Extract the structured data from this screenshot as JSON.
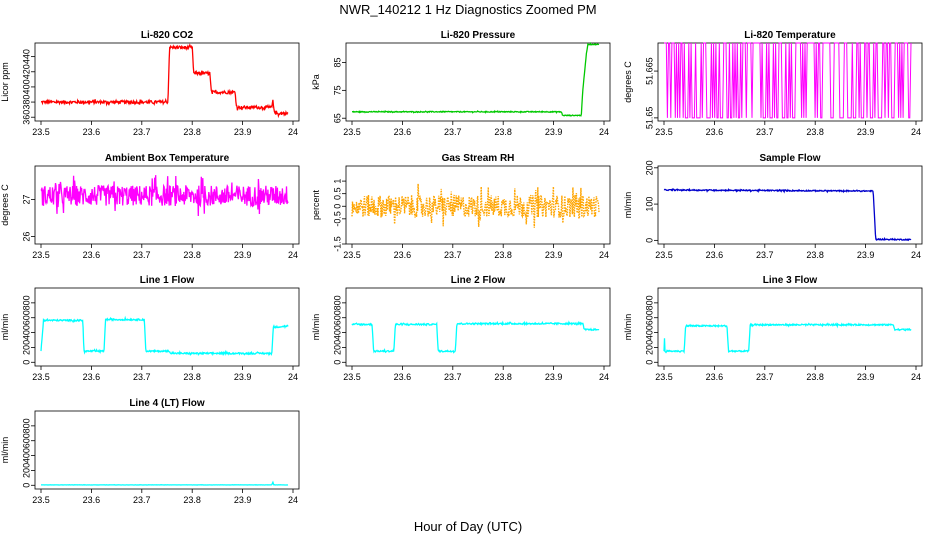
{
  "title": "NWR_140212  1 Hz Diagnostics Zoomed PM",
  "xlabel": "Hour of Day (UTC)",
  "chart_data": [
    {
      "type": "line",
      "title": "Li-820 CO2",
      "ylabel": "Licor ppm",
      "color": "#ff0000",
      "xlim": [
        23.5,
        24.0
      ],
      "ylim": [
        355,
        458
      ],
      "yticks": [
        360,
        380,
        400,
        420,
        440
      ],
      "x": [
        23.5,
        23.67,
        23.675,
        23.752,
        23.755,
        23.8,
        23.803,
        23.835,
        23.838,
        23.885,
        23.888,
        23.958,
        23.96,
        23.962,
        23.965,
        23.99
      ],
      "y": [
        380,
        380,
        380,
        380,
        452,
        452,
        418,
        418,
        393,
        393,
        373,
        373,
        382,
        372,
        365,
        365
      ],
      "noise": 2
    },
    {
      "type": "line",
      "title": "Li-820 Pressure",
      "ylabel": "kPa",
      "color": "#00c800",
      "xlim": [
        23.5,
        24.0
      ],
      "ylim": [
        64,
        92
      ],
      "yticks": [
        65,
        75,
        85
      ],
      "x": [
        23.5,
        23.915,
        23.918,
        23.955,
        23.958,
        23.965,
        23.968,
        23.99
      ],
      "y": [
        67.3,
        67.3,
        66.0,
        66.0,
        75,
        88,
        91.5,
        91.5
      ],
      "noise": 0.15
    },
    {
      "type": "line",
      "title": "Li-820 Temperature",
      "ylabel": "degrees C",
      "color": "#ff00ff",
      "xlim": [
        23.5,
        24.0
      ],
      "ylim": [
        51.649,
        51.674
      ],
      "yticks": [
        51.65,
        51.665
      ],
      "x": [
        23.5,
        23.99
      ],
      "y": [
        51.65,
        51.674
      ],
      "noise": 0,
      "toggle": true
    },
    {
      "type": "line",
      "title": "Ambient Box Temperature",
      "ylabel": "degrees C",
      "color": "#ff00ff",
      "xlim": [
        23.5,
        24.0
      ],
      "ylim": [
        25.8,
        27.9
      ],
      "yticks": [
        26.0,
        27.0
      ],
      "x": [
        23.5,
        23.99
      ],
      "y": [
        27.1,
        27.1
      ],
      "noise": 0.28
    },
    {
      "type": "line",
      "title": "Gas Stream RH",
      "ylabel": "percent",
      "color": "#ffa500",
      "xlim": [
        23.5,
        24.0
      ],
      "ylim": [
        -1.5,
        1.6
      ],
      "yticks": [
        -1.5,
        -0.5,
        0.0,
        0.5,
        1.0
      ],
      "x": [
        23.5,
        23.99
      ],
      "y": [
        0.0,
        0.0
      ],
      "noise": 0.45,
      "dotted": true
    },
    {
      "type": "line",
      "title": "Sample Flow",
      "ylabel": "ml/min",
      "color": "#0000cc",
      "xlim": [
        23.5,
        24.0
      ],
      "ylim": [
        -10,
        205
      ],
      "yticks": [
        0,
        100,
        200
      ],
      "x": [
        23.5,
        23.91,
        23.915,
        23.92,
        23.99
      ],
      "y": [
        139,
        136,
        136,
        3,
        2
      ],
      "noise": 1.5
    },
    {
      "type": "line",
      "title": "Line 1 Flow",
      "ylabel": "ml/min",
      "color": "#00ffff",
      "xlim": [
        23.5,
        24.0
      ],
      "ylim": [
        -50,
        1000
      ],
      "yticks": [
        0,
        200,
        400,
        600,
        800
      ],
      "x": [
        23.5,
        23.505,
        23.583,
        23.585,
        23.625,
        23.628,
        23.705,
        23.708,
        23.755,
        23.758,
        23.958,
        23.961,
        23.99
      ],
      "y": [
        150,
        565,
        565,
        150,
        150,
        575,
        575,
        150,
        150,
        120,
        120,
        470,
        490
      ],
      "noise": 10
    },
    {
      "type": "line",
      "title": "Line 2 Flow",
      "ylabel": "ml/min",
      "color": "#00ffff",
      "xlim": [
        23.5,
        24.0
      ],
      "ylim": [
        -50,
        1000
      ],
      "yticks": [
        0,
        200,
        400,
        600,
        800
      ],
      "x": [
        23.5,
        23.54,
        23.543,
        23.583,
        23.586,
        23.668,
        23.671,
        23.705,
        23.708,
        23.958,
        23.961,
        23.99
      ],
      "y": [
        510,
        510,
        150,
        150,
        510,
        510,
        150,
        150,
        520,
        520,
        440,
        440
      ],
      "noise": 10
    },
    {
      "type": "line",
      "title": "Line 3 Flow",
      "ylabel": "ml/min",
      "color": "#00ffff",
      "xlim": [
        23.5,
        24.0
      ],
      "ylim": [
        -50,
        1000
      ],
      "yticks": [
        0,
        200,
        400,
        600,
        800
      ],
      "x": [
        23.5,
        23.5,
        23.502,
        23.54,
        23.543,
        23.625,
        23.628,
        23.668,
        23.671,
        23.955,
        23.958,
        23.99
      ],
      "y": [
        150,
        480,
        150,
        150,
        490,
        490,
        150,
        150,
        505,
        505,
        440,
        440
      ],
      "noise": 9
    },
    {
      "type": "line",
      "title": "Line 4 (LT) Flow",
      "ylabel": "ml/min",
      "color": "#00ffff",
      "xlim": [
        23.5,
        24.0
      ],
      "ylim": [
        -50,
        1000
      ],
      "yticks": [
        0,
        200,
        400,
        600,
        800
      ],
      "x": [
        23.5,
        23.958,
        23.96,
        23.962,
        23.99
      ],
      "y": [
        5,
        5,
        45,
        5,
        5
      ],
      "noise": 1
    }
  ],
  "xticks": [
    23.5,
    23.6,
    23.7,
    23.8,
    23.9,
    24.0
  ]
}
